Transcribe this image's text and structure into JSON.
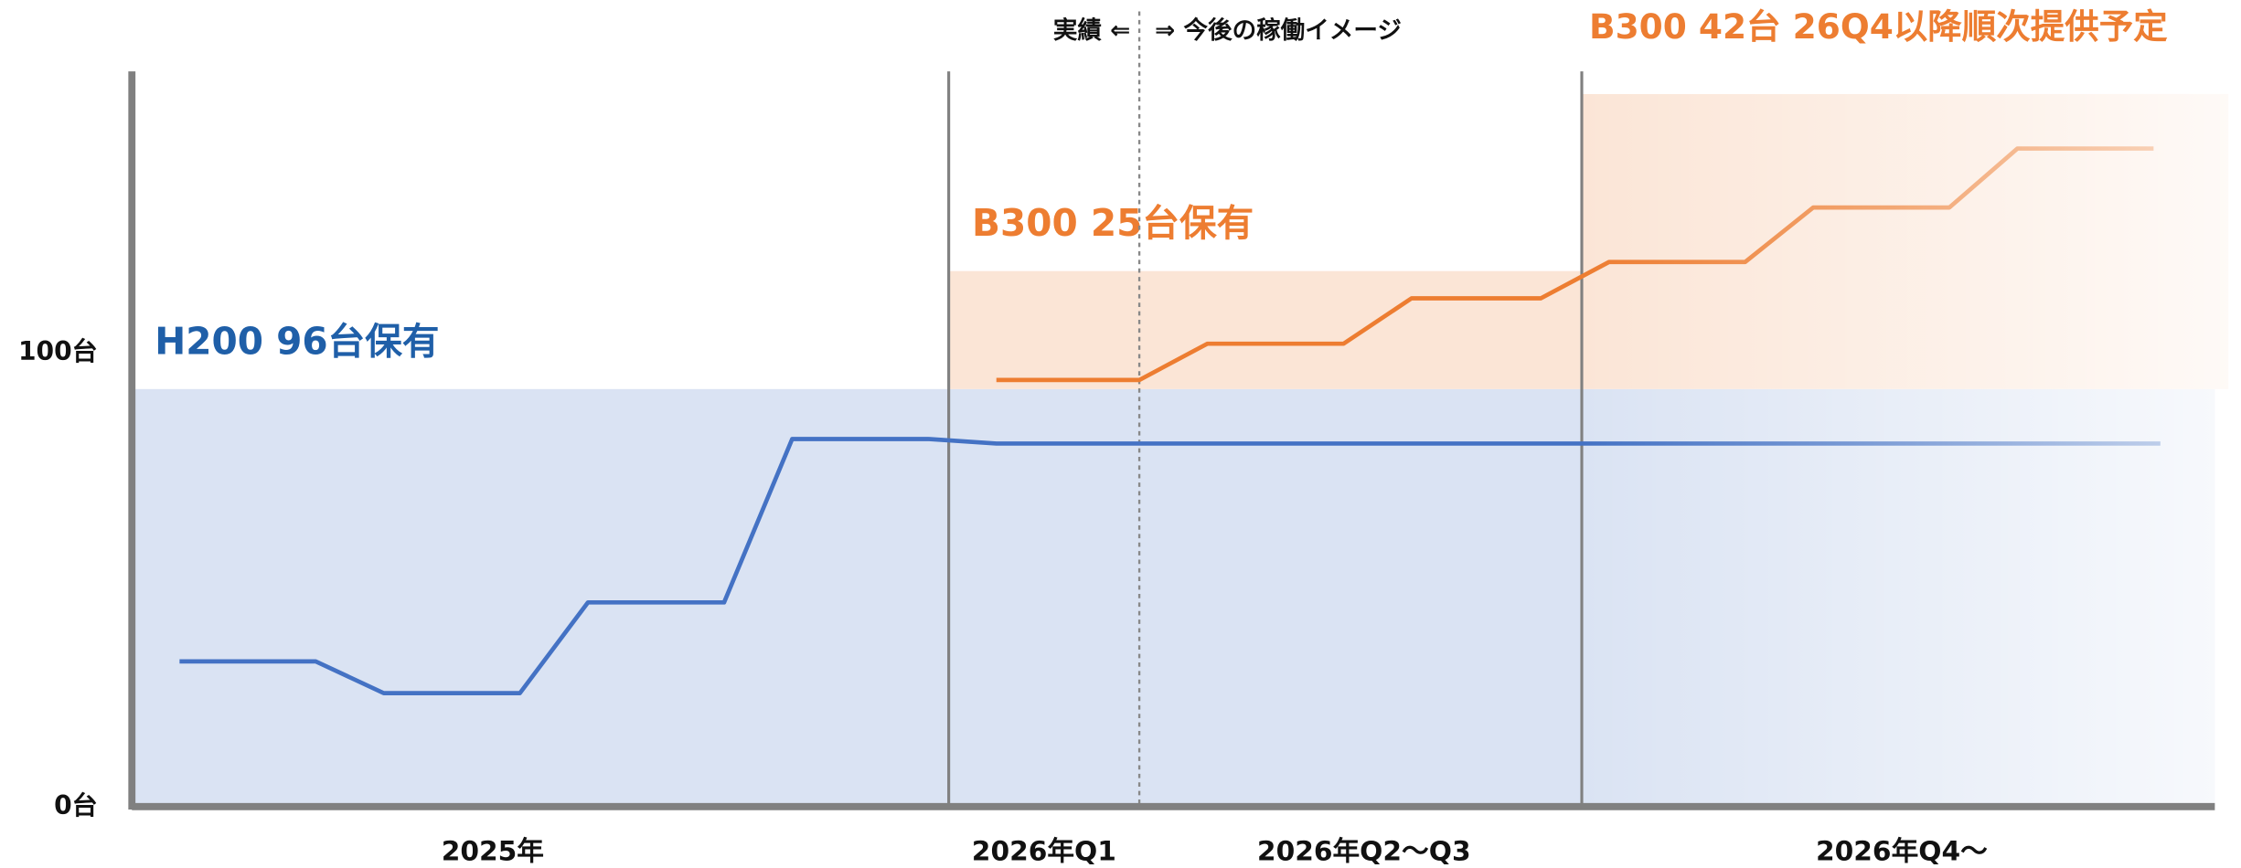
{
  "chart_data": {
    "type": "line",
    "ylim": [
      0,
      162
    ],
    "yticks": [
      {
        "value": 0,
        "label": "0台"
      },
      {
        "value": 100,
        "label": "100台"
      }
    ],
    "xlim": [
      0,
      30.6
    ],
    "categories": [
      "2025年",
      "2026年Q1",
      "2026年Q2〜Q3",
      "2026年Q4〜"
    ],
    "category_x": [
      5.3,
      13.4,
      18.1,
      26.0
    ],
    "dividers": [
      12,
      21.3
    ],
    "actual_boundary": 14.8,
    "actual_label": "実績 ⇐",
    "forecast_label": "⇒ 今後の稼働イメージ",
    "bands": [
      {
        "name": "H200",
        "from": 0,
        "to": 92,
        "x0": 0,
        "x1": 30.6,
        "color": "#dae3f3"
      },
      {
        "name": "B300",
        "from": 92,
        "to": 118,
        "x0": 12,
        "x1": 21.3,
        "color": "#fbe5d6"
      },
      {
        "name": "B300",
        "from": 92,
        "to": 157,
        "x0": 21.3,
        "x1": 30.8,
        "color": "#fbe5d6"
      }
    ],
    "series": [
      {
        "name": "H200",
        "color": "#4472c4",
        "x": [
          0.7,
          2.7,
          3.7,
          5.7,
          6.7,
          8.7,
          9.7,
          11.7,
          12.7,
          29.8
        ],
        "values": [
          32,
          32,
          25,
          25,
          45,
          45,
          81,
          81,
          80,
          80
        ]
      },
      {
        "name": "B300",
        "color": "#ed7d31",
        "x": [
          12.7,
          14.8,
          15.8,
          17.8,
          18.8,
          20.7,
          21.7,
          23.7,
          24.7,
          26.7,
          27.7,
          29.7
        ],
        "values": [
          94,
          94,
          102,
          102,
          112,
          112,
          120,
          120,
          132,
          132,
          145,
          145
        ]
      }
    ],
    "annotations": [
      {
        "text": "H200 96台保有",
        "color": "#1f5fa8"
      },
      {
        "text": "B300 25台保有",
        "color": "#ed7d31"
      },
      {
        "text": "B300 42台 26Q4以降順次提供予定",
        "color": "#ed7d31"
      }
    ]
  }
}
